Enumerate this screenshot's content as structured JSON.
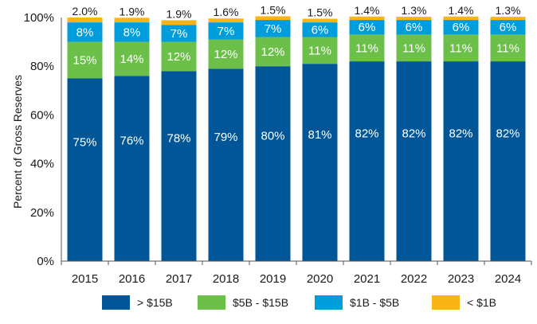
{
  "chart_data": {
    "type": "bar",
    "stacked": true,
    "ylabel": "Percent of Gross Reserves",
    "ylim": [
      0,
      100
    ],
    "yticks": [
      "0%",
      "20%",
      "40%",
      "60%",
      "80%",
      "100%"
    ],
    "grid": false,
    "legend_position": "bottom",
    "categories": [
      "2015",
      "2016",
      "2017",
      "2018",
      "2019",
      "2020",
      "2021",
      "2022",
      "2023",
      "2024"
    ],
    "series": [
      {
        "name": "> $15B",
        "color": "#005696",
        "values": [
          75,
          76,
          78,
          79,
          80,
          81,
          82,
          82,
          82,
          82
        ],
        "labels": [
          "75%",
          "76%",
          "78%",
          "79%",
          "80%",
          "81%",
          "82%",
          "82%",
          "82%",
          "82%"
        ]
      },
      {
        "name": "$5B - $15B",
        "color": "#6cc04a",
        "values": [
          15,
          14,
          12,
          12,
          12,
          11,
          11,
          11,
          11,
          11
        ],
        "labels": [
          "15%",
          "14%",
          "12%",
          "12%",
          "12%",
          "11%",
          "11%",
          "11%",
          "11%",
          "11%"
        ]
      },
      {
        "name": "$1B - $5B",
        "color": "#009ddc",
        "values": [
          8,
          8,
          7,
          7,
          7,
          6,
          6,
          6,
          6,
          6
        ],
        "labels": [
          "8%",
          "8%",
          "7%",
          "7%",
          "7%",
          "6%",
          "6%",
          "6%",
          "6%",
          "6%"
        ]
      },
      {
        "name": "< $1B",
        "color": "#fbb415",
        "values": [
          2.0,
          1.9,
          1.9,
          1.6,
          1.5,
          1.5,
          1.4,
          1.3,
          1.4,
          1.3
        ],
        "labels": [
          "2.0%",
          "1.9%",
          "1.9%",
          "1.6%",
          "1.5%",
          "1.5%",
          "1.4%",
          "1.3%",
          "1.4%",
          "1.3%"
        ]
      }
    ]
  }
}
